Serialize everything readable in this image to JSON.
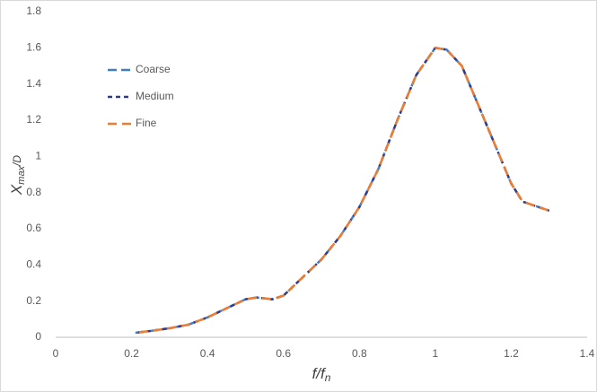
{
  "chart_data": {
    "type": "line",
    "xlabel": [
      "f/f",
      "n"
    ],
    "ylabel": [
      "X",
      "max",
      "/D"
    ],
    "x": [
      0.21,
      0.25,
      0.3,
      0.35,
      0.4,
      0.45,
      0.5,
      0.53,
      0.57,
      0.6,
      0.65,
      0.7,
      0.75,
      0.8,
      0.85,
      0.9,
      0.95,
      1.0,
      1.03,
      1.07,
      1.1,
      1.15,
      1.2,
      1.23,
      1.3
    ],
    "series": [
      {
        "name": "Coarse",
        "color": "#3f7fc6",
        "dash": "10 5",
        "values": [
          0.025,
          0.035,
          0.05,
          0.07,
          0.11,
          0.16,
          0.21,
          0.22,
          0.21,
          0.23,
          0.33,
          0.43,
          0.56,
          0.72,
          0.93,
          1.2,
          1.45,
          1.6,
          1.59,
          1.5,
          1.35,
          1.1,
          0.85,
          0.75,
          0.7
        ]
      },
      {
        "name": "Medium",
        "color": "#2e3a8f",
        "dash": "5 4",
        "values": [
          0.025,
          0.035,
          0.05,
          0.07,
          0.11,
          0.16,
          0.21,
          0.22,
          0.21,
          0.23,
          0.33,
          0.43,
          0.56,
          0.72,
          0.93,
          1.2,
          1.45,
          1.6,
          1.59,
          1.5,
          1.35,
          1.1,
          0.85,
          0.75,
          0.7
        ]
      },
      {
        "name": "Fine",
        "color": "#ed7d31",
        "dash": "10 6",
        "values": [
          0.025,
          0.035,
          0.05,
          0.07,
          0.11,
          0.16,
          0.21,
          0.22,
          0.21,
          0.23,
          0.33,
          0.43,
          0.56,
          0.72,
          0.93,
          1.2,
          1.45,
          1.6,
          1.59,
          1.5,
          1.35,
          1.1,
          0.85,
          0.75,
          0.7
        ]
      }
    ],
    "xlim": [
      0,
      1.4
    ],
    "xticks": [
      0,
      0.2,
      0.4,
      0.6,
      0.8,
      1,
      1.2,
      1.4
    ],
    "ylim": [
      0,
      1.8
    ],
    "yticks": [
      0,
      0.2,
      0.4,
      0.6,
      0.8,
      1,
      1.2,
      1.4,
      1.6,
      1.8
    ],
    "grid": false,
    "legend": "upper left"
  }
}
